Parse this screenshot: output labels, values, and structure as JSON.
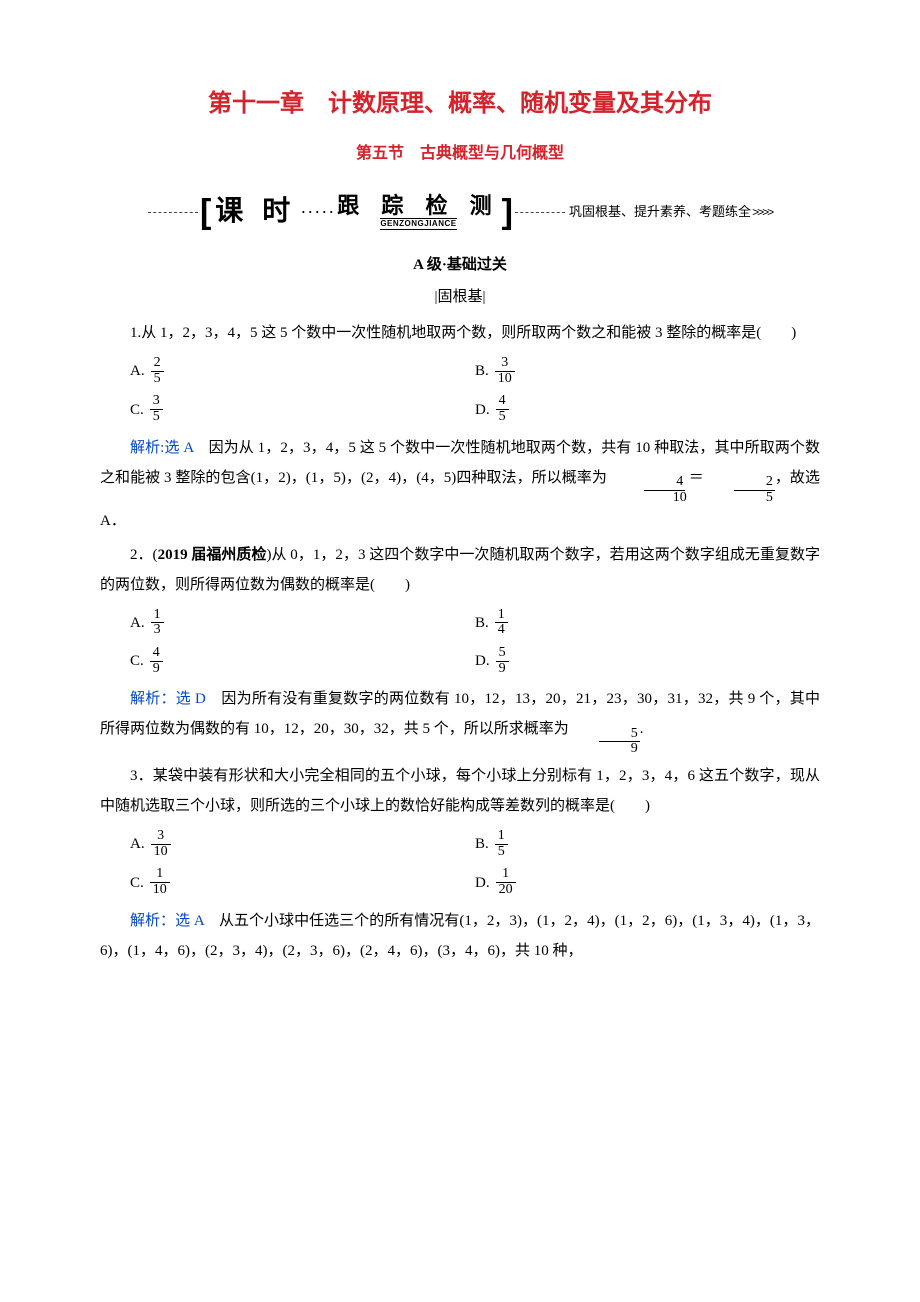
{
  "colors": {
    "accent": "#d4232b",
    "link": "#0046c8",
    "text": "#000000",
    "background": "#ffffff"
  },
  "chapter": {
    "title": "第十一章　计数原理、概率、随机变量及其分布"
  },
  "section": {
    "title": "第五节　古典概型与几何概型"
  },
  "banner": {
    "keshi": "课 时",
    "genzong_cn": "跟 踪 检 测",
    "genzong_py": "GENZONGJIANCE",
    "tagline": "巩固根基、提升素养、考题练全",
    "arrows": ">>>>"
  },
  "level": {
    "label": "A 级·基础过关",
    "sub": "|固根基|"
  },
  "q1": {
    "stem": "1.从 1，2，3，4，5 这 5 个数中一次性随机地取两个数，则所取两个数之和能被 3 整除的概率是(　　)",
    "A_label": "A.",
    "A_num": "2",
    "A_den": "5",
    "B_label": "B.",
    "B_num": "3",
    "B_den": "10",
    "C_label": "C.",
    "C_num": "3",
    "C_den": "5",
    "D_label": "D.",
    "D_num": "4",
    "D_den": "5",
    "ans_label": "解析:",
    "ans_pick": "选 A",
    "ans_text1": "　因为从 1，2，3，4，5 这 5 个数中一次性随机地取两个数，共有 10 种取法，其中所取两个数之和能被 3 整除的包含(1，2)，(1，5)，(2，4)，(4，5)四种取法，所以概率为",
    "ans_f1_num": "4",
    "ans_f1_den": "10",
    "ans_eq": "＝",
    "ans_f2_num": "2",
    "ans_f2_den": "5",
    "ans_tail": "，故选 A．"
  },
  "q2": {
    "stem_a": "2．(",
    "stem_bold": "2019 届福州质检",
    "stem_b": ")从 0，1，2，3 这四个数字中一次随机取两个数字，若用这两个数字组成无重复数字的两位数，则所得两位数为偶数的概率是(　　)",
    "A_label": "A.",
    "A_num": "1",
    "A_den": "3",
    "B_label": "B.",
    "B_num": "1",
    "B_den": "4",
    "C_label": "C.",
    "C_num": "4",
    "C_den": "9",
    "D_label": "D.",
    "D_num": "5",
    "D_den": "9",
    "ans_label": "解析：",
    "ans_pick": "选 D",
    "ans_text1": "　因为所有没有重复数字的两位数有 10，12，13，20，21，23，30，31，32，共 9 个，其中所得两位数为偶数的有 10，12，20，30，32，共 5 个，所以所求概率为",
    "ans_f_num": "5",
    "ans_f_den": "9",
    "ans_tail": "."
  },
  "q3": {
    "stem": "3．某袋中装有形状和大小完全相同的五个小球，每个小球上分别标有 1，2，3，4，6 这五个数字，现从中随机选取三个小球，则所选的三个小球上的数恰好能构成等差数列的概率是(　　)",
    "A_label": "A.",
    "A_num": "3",
    "A_den": "10",
    "B_label": "B.",
    "B_num": "1",
    "B_den": "5",
    "C_label": "C.",
    "C_num": "1",
    "C_den": "10",
    "D_label": "D.",
    "D_num": "1",
    "D_den": "20",
    "ans_label": "解析：",
    "ans_pick": "选 A",
    "ans_text": "　从五个小球中任选三个的所有情况有(1，2，3)，(1，2，4)，(1，2，6)，(1，3，4)，(1，3，6)，(1，4，6)，(2，3，4)，(2，3，6)，(2，4，6)，(3，4，6)，共 10 种，"
  }
}
